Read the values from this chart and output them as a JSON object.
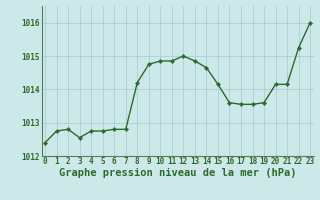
{
  "x": [
    0,
    1,
    2,
    3,
    4,
    5,
    6,
    7,
    8,
    9,
    10,
    11,
    12,
    13,
    14,
    15,
    16,
    17,
    18,
    19,
    20,
    21,
    22,
    23
  ],
  "y": [
    1012.4,
    1012.75,
    1012.8,
    1012.55,
    1012.75,
    1012.75,
    1012.8,
    1012.8,
    1014.2,
    1014.75,
    1014.85,
    1014.85,
    1015.0,
    1014.85,
    1014.65,
    1014.15,
    1013.6,
    1013.55,
    1013.55,
    1013.6,
    1014.15,
    1014.15,
    1015.25,
    1016.0
  ],
  "line_color": "#2d6a2d",
  "marker": "D",
  "marker_size": 2.2,
  "background_color": "#cce8e8",
  "grid_color": "#aacece",
  "xlabel": "Graphe pression niveau de la mer (hPa)",
  "xlabel_fontsize": 7.5,
  "ylim": [
    1012,
    1016.5
  ],
  "yticks": [
    1012,
    1013,
    1014,
    1015,
    1016
  ],
  "xticks": [
    0,
    1,
    2,
    3,
    4,
    5,
    6,
    7,
    8,
    9,
    10,
    11,
    12,
    13,
    14,
    15,
    16,
    17,
    18,
    19,
    20,
    21,
    22,
    23
  ],
  "tick_color": "#2d6a2d",
  "tick_fontsize": 5.5,
  "border_color": "#5a7a5a",
  "line_width": 1.0
}
